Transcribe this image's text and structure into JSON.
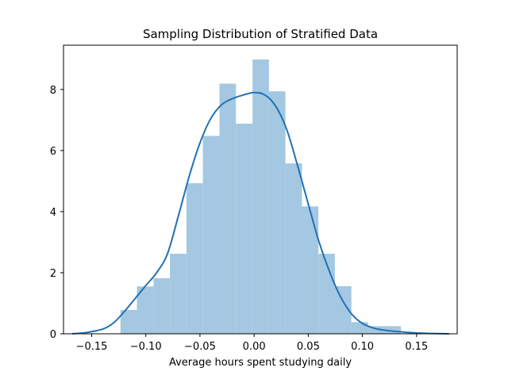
{
  "chart_data": {
    "type": "bar",
    "title": "Sampling Distribution of Stratified Data",
    "xlabel": "Average hours spent studying daily",
    "ylabel": "",
    "xlim": [
      -0.176,
      0.1875
    ],
    "ylim": [
      0,
      9.45
    ],
    "xticks": [
      -0.15,
      -0.1,
      -0.05,
      0.0,
      0.05,
      0.1,
      0.15
    ],
    "xtick_labels": [
      "−0.15",
      "−0.10",
      "−0.05",
      "0.00",
      "0.05",
      "0.10",
      "0.15"
    ],
    "yticks": [
      0,
      2,
      4,
      6,
      8
    ],
    "ytick_labels": [
      "0",
      "2",
      "4",
      "6",
      "8"
    ],
    "grid": false,
    "colors": {
      "bars": "#a4c8e1",
      "kde": "#2171b5"
    },
    "histogram": {
      "bin_edges": [
        -0.1234,
        -0.1082,
        -0.0929,
        -0.0777,
        -0.0625,
        -0.0473,
        -0.032,
        -0.0168,
        -0.0015,
        0.0137,
        0.0289,
        0.0442,
        0.0594,
        0.0746,
        0.0898,
        0.1051,
        0.1203,
        0.1355
      ],
      "values": [
        0.78,
        1.55,
        1.82,
        2.62,
        4.93,
        6.48,
        8.19,
        6.88,
        8.98,
        7.94,
        5.58,
        4.17,
        2.62,
        1.56,
        0.38,
        0.25,
        0.25
      ]
    },
    "kde": {
      "x": [
        -0.168,
        -0.155,
        -0.14,
        -0.13,
        -0.12,
        -0.11,
        -0.1,
        -0.09,
        -0.08,
        -0.07,
        -0.06,
        -0.05,
        -0.04,
        -0.03,
        -0.02,
        -0.01,
        0.0,
        0.01,
        0.02,
        0.03,
        0.04,
        0.05,
        0.06,
        0.07,
        0.08,
        0.09,
        0.1,
        0.11,
        0.12,
        0.13,
        0.14,
        0.155,
        0.18
      ],
      "y": [
        0.0,
        0.04,
        0.15,
        0.35,
        0.72,
        1.15,
        1.58,
        2.0,
        2.62,
        3.85,
        5.15,
        6.25,
        7.05,
        7.5,
        7.7,
        7.82,
        7.9,
        7.82,
        7.45,
        6.7,
        5.52,
        4.25,
        3.0,
        2.0,
        1.2,
        0.65,
        0.34,
        0.19,
        0.12,
        0.08,
        0.05,
        0.02,
        0.0
      ]
    }
  }
}
